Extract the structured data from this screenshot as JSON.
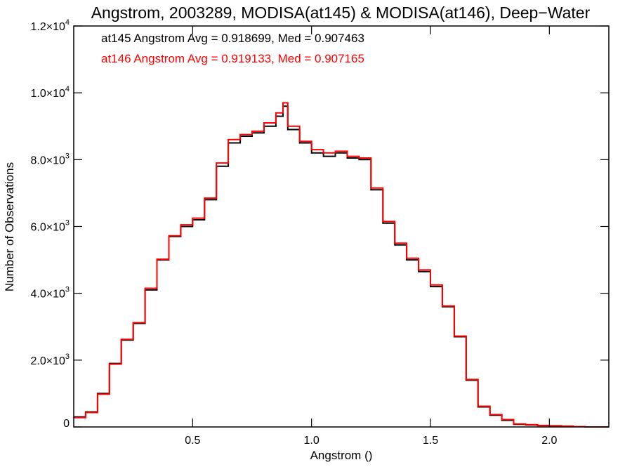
{
  "chart_data": {
    "type": "histogram-step",
    "title": "Angstrom, 2003289, MODISA(at145) & MODISA(at146), Deep−Water",
    "xlabel": "Angstrom ()",
    "ylabel": "Number of Observations",
    "xlim": [
      0.0,
      2.25
    ],
    "ylim": [
      0,
      12000
    ],
    "grid": false,
    "x_ticks": [
      {
        "value": 0.5,
        "label": "0.5"
      },
      {
        "value": 1.0,
        "label": "1.0"
      },
      {
        "value": 1.5,
        "label": "1.5"
      },
      {
        "value": 2.0,
        "label": "2.0"
      }
    ],
    "y_ticks": [
      {
        "value": 0,
        "mant": "0",
        "exp": ""
      },
      {
        "value": 2000,
        "mant": "2.0×10",
        "exp": "3"
      },
      {
        "value": 4000,
        "mant": "4.0×10",
        "exp": "3"
      },
      {
        "value": 6000,
        "mant": "6.0×10",
        "exp": "3"
      },
      {
        "value": 8000,
        "mant": "8.0×10",
        "exp": "3"
      },
      {
        "value": 10000,
        "mant": "1.0×10",
        "exp": "4"
      },
      {
        "value": 12000,
        "mant": "1.2×10",
        "exp": "4"
      }
    ],
    "annotations": [
      {
        "text": "at145 Angstrom Avg = 0.918699, Med = 0.907463",
        "color": "#000000"
      },
      {
        "text": "at146 Angstrom Avg = 0.919133, Med = 0.907165",
        "color": "#ff0000"
      }
    ],
    "series": [
      {
        "color": "#000000",
        "x": [
          0.0,
          0.05,
          0.1,
          0.15,
          0.2,
          0.25,
          0.3,
          0.35,
          0.4,
          0.45,
          0.5,
          0.55,
          0.6,
          0.65,
          0.7,
          0.75,
          0.8,
          0.85,
          0.88,
          0.9,
          0.95,
          1.0,
          1.05,
          1.1,
          1.15,
          1.2,
          1.25,
          1.3,
          1.35,
          1.4,
          1.45,
          1.5,
          1.55,
          1.6,
          1.65,
          1.7,
          1.75,
          1.8,
          1.85,
          1.9,
          1.95,
          2.0,
          2.05,
          2.1,
          2.15,
          2.25
        ],
        "y": [
          300,
          450,
          1000,
          1900,
          2600,
          3100,
          4100,
          5000,
          5700,
          6000,
          6200,
          6800,
          7800,
          8500,
          8700,
          8800,
          9000,
          9300,
          9600,
          8900,
          8500,
          8200,
          8100,
          8200,
          8050,
          8000,
          7100,
          6100,
          5450,
          5000,
          4650,
          4200,
          3600,
          2700,
          1400,
          600,
          350,
          200,
          80,
          60,
          40,
          30,
          20,
          10,
          0,
          0
        ]
      },
      {
        "color": "#ff0000",
        "x": [
          0.0,
          0.05,
          0.1,
          0.15,
          0.2,
          0.25,
          0.3,
          0.35,
          0.4,
          0.45,
          0.5,
          0.55,
          0.6,
          0.65,
          0.7,
          0.75,
          0.8,
          0.85,
          0.88,
          0.9,
          0.95,
          1.0,
          1.05,
          1.1,
          1.15,
          1.2,
          1.25,
          1.3,
          1.35,
          1.4,
          1.45,
          1.5,
          1.55,
          1.6,
          1.65,
          1.7,
          1.75,
          1.8,
          1.85,
          1.9,
          1.95,
          2.0,
          2.05,
          2.1,
          2.15,
          2.25
        ],
        "y": [
          280,
          430,
          980,
          1880,
          2620,
          3120,
          4150,
          5020,
          5720,
          6050,
          6250,
          6850,
          7900,
          8600,
          8750,
          8850,
          9100,
          9400,
          9700,
          9000,
          8550,
          8300,
          8200,
          8250,
          8100,
          8050,
          7150,
          6150,
          5500,
          5050,
          4700,
          4250,
          3620,
          2720,
          1420,
          620,
          370,
          220,
          90,
          70,
          45,
          35,
          25,
          10,
          0,
          0
        ]
      }
    ]
  }
}
